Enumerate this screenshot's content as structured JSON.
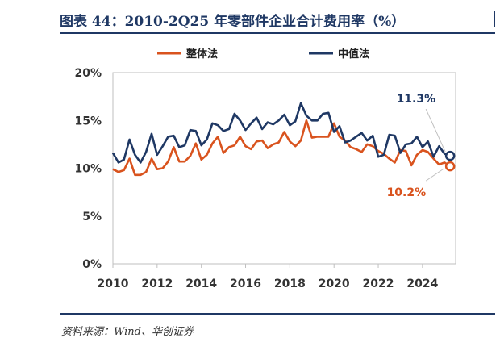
{
  "header": {
    "title": "图表 44：2010-2Q25 年零部件企业合计费用率（%）"
  },
  "footer": {
    "source": "资料来源：Wind、华创证券"
  },
  "colors": {
    "accent": "#1f3864",
    "series_overall": "#d9531e",
    "series_median": "#1f3864"
  },
  "chart_data": {
    "type": "line",
    "title": "2010-2Q25 年零部件企业合计费用率（%）",
    "xlabel": "",
    "ylabel": "",
    "xlim": [
      2010,
      2025.5
    ],
    "ylim": [
      0,
      20
    ],
    "y_ticks": [
      "0%",
      "5%",
      "10%",
      "15%",
      "20%"
    ],
    "y_tick_values": [
      0,
      5,
      10,
      15,
      20
    ],
    "x_ticks": [
      "2010",
      "2012",
      "2014",
      "2016",
      "2018",
      "2020",
      "2022",
      "2024"
    ],
    "x_tick_values": [
      2010,
      2012,
      2014,
      2016,
      2018,
      2020,
      2022,
      2024
    ],
    "grid": false,
    "legend_position": "top",
    "x": [
      "2010Q1",
      "2010Q2",
      "2010Q3",
      "2010Q4",
      "2011Q1",
      "2011Q2",
      "2011Q3",
      "2011Q4",
      "2012Q1",
      "2012Q2",
      "2012Q3",
      "2012Q4",
      "2013Q1",
      "2013Q2",
      "2013Q3",
      "2013Q4",
      "2014Q1",
      "2014Q2",
      "2014Q3",
      "2014Q4",
      "2015Q1",
      "2015Q2",
      "2015Q3",
      "2015Q4",
      "2016Q1",
      "2016Q2",
      "2016Q3",
      "2016Q4",
      "2017Q1",
      "2017Q2",
      "2017Q3",
      "2017Q4",
      "2018Q1",
      "2018Q2",
      "2018Q3",
      "2018Q4",
      "2019Q1",
      "2019Q2",
      "2019Q3",
      "2019Q4",
      "2020Q1",
      "2020Q2",
      "2020Q3",
      "2020Q4",
      "2021Q1",
      "2021Q2",
      "2021Q3",
      "2021Q4",
      "2022Q1",
      "2022Q2",
      "2022Q3",
      "2022Q4",
      "2023Q1",
      "2023Q2",
      "2023Q3",
      "2023Q4",
      "2024Q1",
      "2024Q2",
      "2024Q3",
      "2024Q4",
      "2025Q1",
      "2025Q2"
    ],
    "series": [
      {
        "name": "整体法",
        "values": [
          9.9,
          9.6,
          9.8,
          11.0,
          9.3,
          9.3,
          9.6,
          11.0,
          9.9,
          10.0,
          10.7,
          12.2,
          10.7,
          10.7,
          11.3,
          12.6,
          10.9,
          11.4,
          12.6,
          13.3,
          11.6,
          12.2,
          12.4,
          13.3,
          12.3,
          12.0,
          12.8,
          12.9,
          12.1,
          12.5,
          12.7,
          13.8,
          12.8,
          12.3,
          12.9,
          15.0,
          13.2,
          13.3,
          13.3,
          13.3,
          14.7,
          13.3,
          12.9,
          12.2,
          12.0,
          11.7,
          12.5,
          12.3,
          11.8,
          11.5,
          11.0,
          10.6,
          11.9,
          11.8,
          10.3,
          11.4,
          11.9,
          11.7,
          11.0,
          10.4,
          10.6,
          10.2
        ],
        "end_label": "10.2%"
      },
      {
        "name": "中值法",
        "values": [
          11.6,
          10.6,
          10.9,
          13.0,
          11.4,
          10.6,
          11.7,
          13.6,
          11.4,
          12.3,
          13.3,
          13.4,
          12.2,
          12.4,
          14.0,
          13.9,
          12.4,
          13.0,
          14.7,
          14.5,
          13.9,
          14.1,
          15.7,
          15.0,
          14.0,
          14.7,
          15.3,
          14.1,
          14.8,
          14.6,
          15.0,
          15.6,
          14.5,
          14.9,
          16.8,
          15.5,
          15.0,
          15.0,
          15.7,
          15.8,
          13.8,
          14.4,
          12.7,
          12.9,
          13.3,
          13.7,
          12.9,
          13.4,
          11.2,
          11.4,
          13.5,
          13.4,
          11.6,
          12.5,
          12.6,
          13.3,
          12.2,
          12.8,
          11.2,
          12.3,
          11.5,
          11.3
        ],
        "end_label": "11.3%"
      }
    ]
  }
}
